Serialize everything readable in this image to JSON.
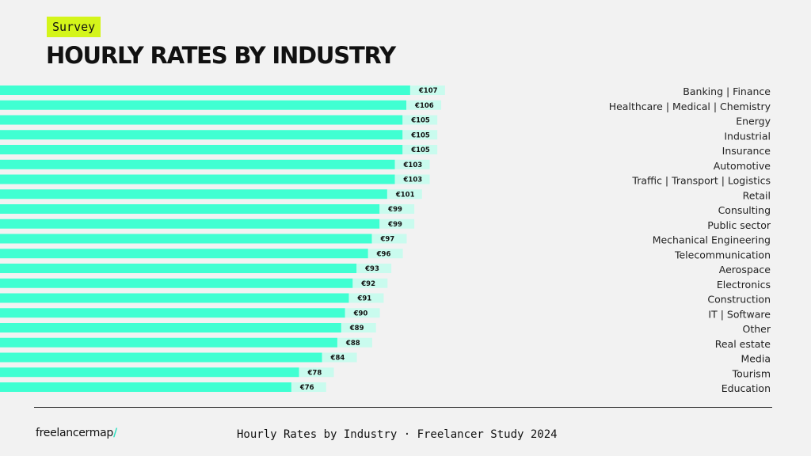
{
  "header": {
    "tag": "Survey",
    "title": "HOURLY RATES BY INDUSTRY"
  },
  "footer": {
    "brand": "freelancermap",
    "brand_slash": "/",
    "caption": "Hourly Rates by Industry · Freelancer Study 2024"
  },
  "colors": {
    "bar": "#40ffd2",
    "label_bg": "#c9fbee",
    "tag_bg": "#d4f51a",
    "background": "#f2f2f2"
  },
  "chart_data": {
    "type": "bar",
    "orientation": "horizontal",
    "title": "HOURLY RATES BY INDUSTRY",
    "categories": [
      "Banking | Finance",
      "Healthcare | Medical | Chemistry",
      "Energy",
      "Industrial",
      "Insurance",
      "Automotive",
      "Traffic | Transport | Logistics",
      "Retail",
      "Consulting",
      "Public sector",
      "Mechanical Engineering",
      "Telecommunication",
      "Aerospace",
      "Electronics",
      "Construction",
      "IT | Software",
      "Other",
      "Real estate",
      "Media",
      "Tourism",
      "Education"
    ],
    "values": [
      107,
      106,
      105,
      105,
      105,
      103,
      103,
      101,
      99,
      99,
      97,
      96,
      93,
      92,
      91,
      90,
      89,
      88,
      84,
      78,
      76
    ],
    "value_labels": [
      "€107",
      "€106",
      "€105",
      "€105",
      "€105",
      "€103",
      "€103",
      "€101",
      "€99",
      "€99",
      "€97",
      "€96",
      "€93",
      "€92",
      "€91",
      "€90",
      "€89",
      "€88",
      "€84",
      "€78",
      "€76"
    ],
    "unit": "€",
    "legend": "none",
    "grid": false
  }
}
